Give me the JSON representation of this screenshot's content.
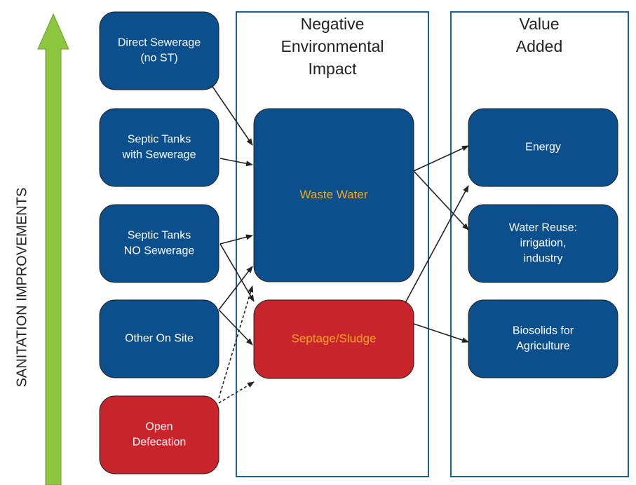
{
  "axis_label": "SANITATION IMPROVEMENTS",
  "columns": [
    {
      "title": [
        "Negative",
        "Environmental",
        "Impact"
      ]
    },
    {
      "title": [
        "Value",
        "Added"
      ]
    }
  ],
  "sources": [
    {
      "label": [
        "Direct Sewerage",
        "(no ST)"
      ]
    },
    {
      "label": [
        "Septic Tanks",
        "with Sewerage"
      ]
    },
    {
      "label": [
        "Septic Tanks",
        "NO Sewerage"
      ]
    },
    {
      "label": [
        "Other On Site"
      ]
    },
    {
      "label": [
        "Open",
        "Defecation"
      ]
    }
  ],
  "impacts": [
    {
      "label": [
        "Waste Water"
      ]
    },
    {
      "label": [
        "Septage/Sludge"
      ]
    }
  ],
  "values": [
    {
      "label": [
        "Energy"
      ]
    },
    {
      "label": [
        "Water Reuse:",
        "irrigation,",
        "industry"
      ]
    },
    {
      "label": [
        "Biosolids for",
        "Agriculture"
      ]
    }
  ]
}
